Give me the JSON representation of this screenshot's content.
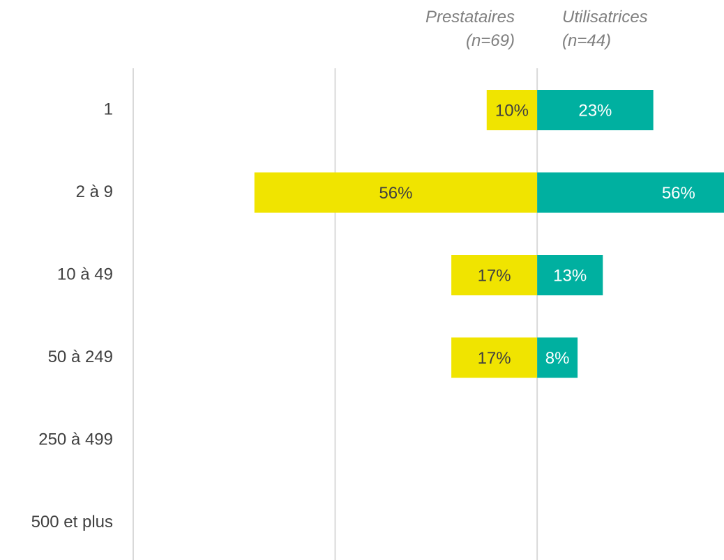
{
  "chart_data": {
    "type": "butterfly",
    "categories": [
      "1",
      "2 à 9",
      "10 à 49",
      "50 à 249",
      "250 à 499",
      "500 et plus"
    ],
    "series": [
      {
        "name": "Prestataires (n=69)",
        "color": "#f0e400",
        "label_color": "#404040",
        "values": [
          10,
          56,
          17,
          17,
          null,
          null
        ],
        "value_labels": [
          "10%",
          "56%",
          "17%",
          "17%",
          null,
          null
        ]
      },
      {
        "name": "Utilisatrices (n=44)",
        "color": "#00b0a0",
        "label_color": "#ffffff",
        "values": [
          23,
          56,
          13,
          8,
          null,
          null
        ],
        "value_labels": [
          "23%",
          "56%",
          "13%",
          "8%",
          null,
          null
        ]
      }
    ],
    "xlim": [
      -80,
      37
    ],
    "grid_x": [
      -80,
      -40,
      0
    ],
    "grid": true
  }
}
